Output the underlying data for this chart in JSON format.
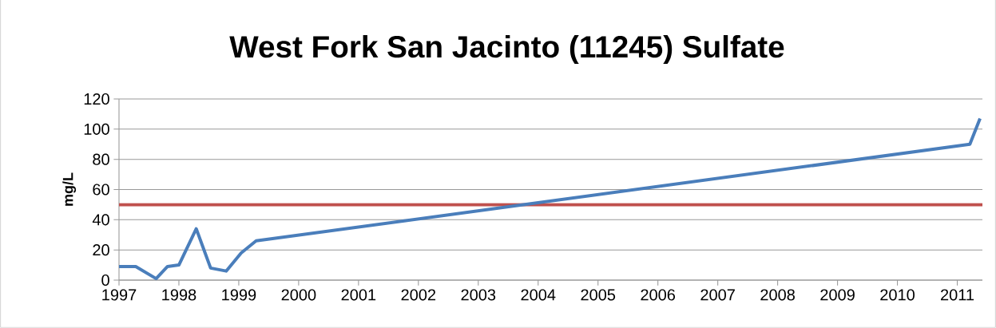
{
  "chart_data": {
    "type": "line",
    "title": "West Fork San Jacinto (11245) Sulfate",
    "ylabel": "mg/L",
    "series": [
      {
        "color": "#4a7ebb",
        "x": [
          1997.0,
          1997.28,
          1997.62,
          1997.81,
          1998.0,
          1998.29,
          1998.53,
          1998.79,
          1999.04,
          1999.29,
          2011.21,
          2011.38
        ],
        "values": [
          9,
          9,
          1,
          9,
          10,
          34,
          8,
          6,
          18,
          26,
          90,
          107
        ]
      }
    ],
    "ref_lines": [
      {
        "axis": "y",
        "value": 50,
        "color": "#c0504d"
      }
    ],
    "xlim": [
      1997,
      2011.42
    ],
    "xticks": [
      1997,
      1998,
      1999,
      2000,
      2001,
      2002,
      2003,
      2004,
      2005,
      2006,
      2007,
      2008,
      2009,
      2010,
      2011
    ],
    "ylim": [
      0,
      120
    ],
    "yticks": [
      0,
      20,
      40,
      60,
      80,
      100,
      120
    ],
    "grid": "y",
    "marker": "none",
    "line_style": "solid"
  }
}
